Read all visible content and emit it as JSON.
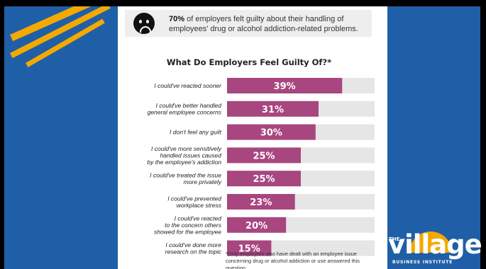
{
  "banner": {
    "icon": "sad-face-icon",
    "stat": "70%",
    "text": "of employers felt guilty about their handling of employees' drug or alcohol addiction-related problems."
  },
  "chart_data": {
    "type": "bar",
    "orientation": "horizontal",
    "title": "What Do Employers Feel Guilty Of?*",
    "categories": [
      [
        "I could've reacted sooner"
      ],
      [
        "I could've better handled",
        "general employee concerns"
      ],
      [
        "I don't feel any guilt"
      ],
      [
        "I could've more sensitively",
        "handled issues caused",
        "by the employee's addiction"
      ],
      [
        "I could've treated the issue",
        "more privately"
      ],
      [
        "I could've prevented",
        "workplace stress"
      ],
      [
        "I could've reacted",
        "to the concern others",
        "showed for the employee"
      ],
      [
        "I could've done more",
        "research on the topic"
      ]
    ],
    "values": [
      39,
      31,
      30,
      25,
      25,
      23,
      20,
      15
    ],
    "value_labels": [
      "39%",
      "31%",
      "30%",
      "25%",
      "25%",
      "23%",
      "20%",
      "15%"
    ],
    "xlim": [
      0,
      50
    ],
    "bar_color": "#a8467f",
    "track_color": "#e6e6e6",
    "footnote": "*Only employers who have dealt with an employee issue concerning drug or alcohol addiction or use answered this question."
  },
  "logo": {
    "the": "THE",
    "word": "village",
    "sub": "BUSINESS INSTITUTE"
  },
  "colors": {
    "background": "#1f5fa7",
    "accent": "#f4a900",
    "card": "#ffffff"
  }
}
